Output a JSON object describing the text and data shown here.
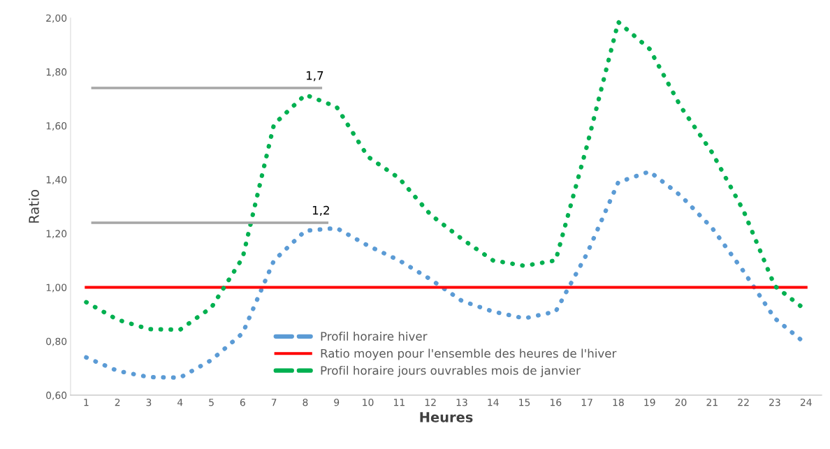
{
  "chart_data": {
    "type": "line",
    "xlabel": "Heures",
    "ylabel": "Ratio",
    "x": [
      1,
      2,
      3,
      4,
      5,
      6,
      7,
      8,
      9,
      10,
      11,
      12,
      13,
      14,
      15,
      16,
      17,
      18,
      19,
      20,
      21,
      22,
      23,
      24
    ],
    "series": [
      {
        "name": "Profil horaire hiver",
        "color": "#5b9bd5",
        "line_style": "dotted",
        "values": [
          0.74,
          0.69,
          0.667,
          0.665,
          0.73,
          0.83,
          1.1,
          1.21,
          1.22,
          1.155,
          1.1,
          1.03,
          0.95,
          0.91,
          0.885,
          0.91,
          1.125,
          1.39,
          1.43,
          1.34,
          1.22,
          1.06,
          0.885,
          0.79
        ]
      },
      {
        "name": "Ratio moyen pour l'ensemble des heures de l'hiver",
        "color": "#ff0000",
        "line_style": "solid",
        "values": [
          1,
          1,
          1,
          1,
          1,
          1,
          1,
          1,
          1,
          1,
          1,
          1,
          1,
          1,
          1,
          1,
          1,
          1,
          1,
          1,
          1,
          1,
          1,
          1
        ]
      },
      {
        "name": "Profil horaire jours ouvrables mois de janvier",
        "color": "#00b050",
        "line_style": "dotted",
        "values": [
          0.945,
          0.88,
          0.845,
          0.843,
          0.925,
          1.11,
          1.605,
          1.715,
          1.67,
          1.485,
          1.405,
          1.27,
          1.18,
          1.1,
          1.08,
          1.1,
          1.525,
          1.985,
          1.885,
          1.67,
          1.5,
          1.285,
          1.005,
          0.915
        ]
      },
      {
        "color": "#a6a6a6",
        "line_style": "solid",
        "x": [
          1.2,
          8.5
        ],
        "values": [
          1.74,
          1.74
        ]
      },
      {
        "color": "#a6a6a6",
        "line_style": "solid",
        "x": [
          1.2,
          8.7
        ],
        "values": [
          1.24,
          1.24
        ]
      }
    ],
    "annotations": [
      {
        "text": "1,7",
        "x": 8.3,
        "y": 1.74
      },
      {
        "text": "1,2",
        "x": 8.5,
        "y": 1.24
      }
    ],
    "xlim": [
      0.5,
      24.5
    ],
    "xticks": [
      1,
      2,
      3,
      4,
      5,
      6,
      7,
      8,
      9,
      10,
      11,
      12,
      13,
      14,
      15,
      16,
      17,
      18,
      19,
      20,
      21,
      22,
      23,
      24
    ],
    "ylim": [
      0.6,
      2.0
    ],
    "yticks": [
      {
        "value": 0.6,
        "label": "0,60"
      },
      {
        "value": 0.8,
        "label": "0,80"
      },
      {
        "value": 1.0,
        "label": "1,00"
      },
      {
        "value": 1.2,
        "label": "1,20"
      },
      {
        "value": 1.4,
        "label": "1,40"
      },
      {
        "value": 1.6,
        "label": "1,60"
      },
      {
        "value": 1.8,
        "label": "1,80"
      },
      {
        "value": 2.0,
        "label": "2,00"
      }
    ],
    "grid": false,
    "legend": "bottom"
  }
}
